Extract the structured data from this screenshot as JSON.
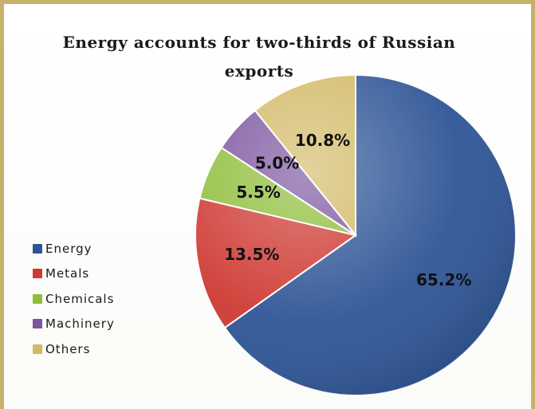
{
  "chart_data": {
    "type": "pie",
    "title": "Energy accounts for two-thirds of Russian exports",
    "slices": [
      {
        "name": "Energy",
        "value": 65.2,
        "label": "65.2%",
        "color": "#2e5596"
      },
      {
        "name": "Metals",
        "value": 13.5,
        "label": "13.5%",
        "color": "#cf3a33"
      },
      {
        "name": "Chemicals",
        "value": 5.5,
        "label": "5.5%",
        "color": "#8fbd3a"
      },
      {
        "name": "Machinery",
        "value": 5.0,
        "label": "5.0%",
        "color": "#7b559f"
      },
      {
        "name": "Others",
        "value": 10.8,
        "label": "10.8%",
        "color": "#d2b966"
      }
    ],
    "legend_position": "left"
  }
}
